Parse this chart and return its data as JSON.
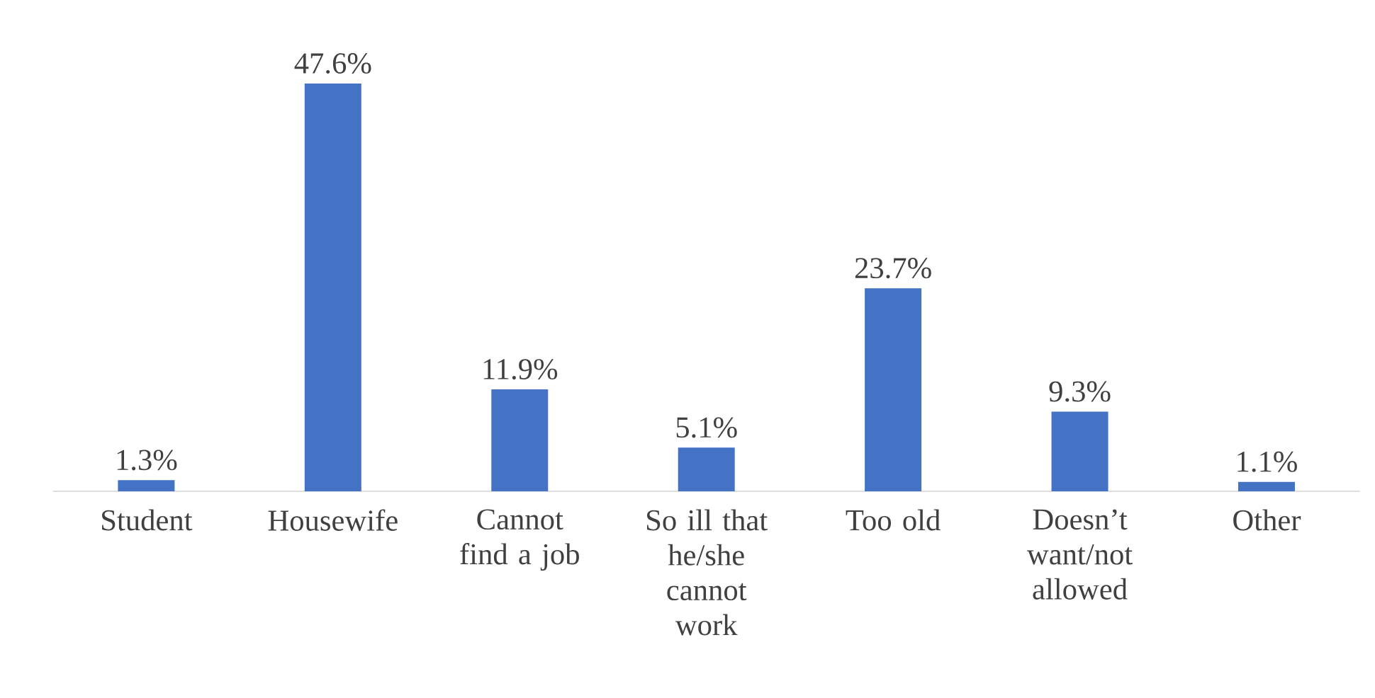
{
  "chart_data": {
    "type": "bar",
    "categories": [
      "Student",
      "Housewife",
      "Cannot find a job",
      "So ill that he/she cannot work",
      "Too old",
      "Doesn’t want/not allowed",
      "Other"
    ],
    "values": [
      1.3,
      47.6,
      11.9,
      5.1,
      23.7,
      9.3,
      1.1
    ],
    "value_labels": [
      "1.3%",
      "47.6%",
      "11.9%",
      "5.1%",
      "23.7%",
      "9.3%",
      "1.1%"
    ],
    "color": "#4472c4"
  }
}
